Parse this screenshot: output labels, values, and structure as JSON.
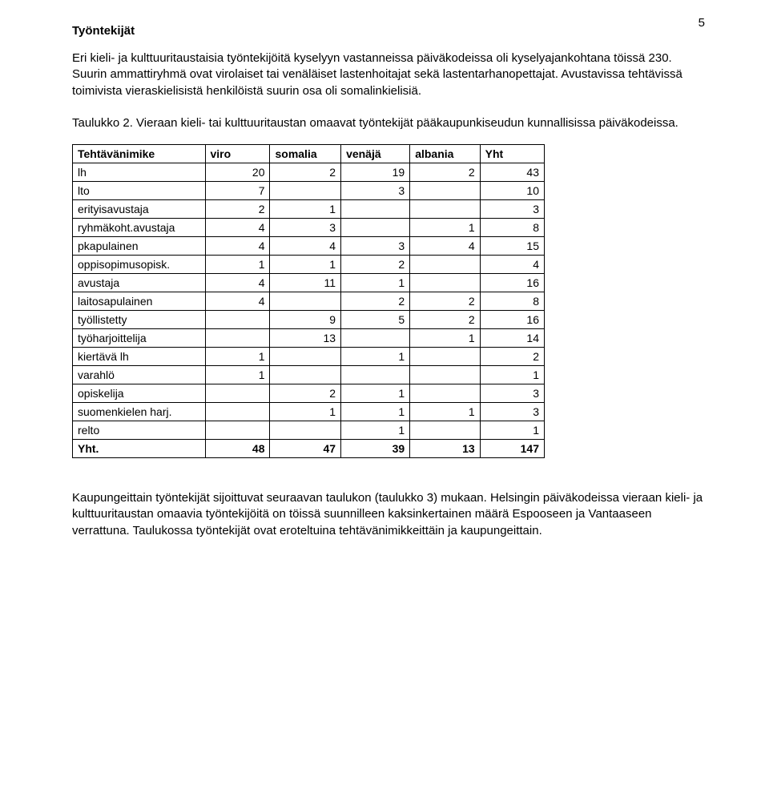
{
  "pageNumber": "5",
  "heading": "Työntekijät",
  "paragraph1": "Eri kieli- ja kulttuuritaustaisia työntekijöitä kyselyyn vastanneissa päiväkodeissa oli kyselyajankohtana töissä 230. Suurin ammattiryhmä ovat virolaiset tai venäläiset lastenhoitajat sekä lastentarhanopettajat. Avustavissa tehtävissä toimivista vieraskielisistä henkilöistä suurin osa oli somalinkielisiä.",
  "caption": "Taulukko 2. Vieraan kieli- tai kulttuuritaustan omaavat työntekijät pääkaupunkiseudun kunnallisissa päiväkodeissa.",
  "table": {
    "columns": [
      "Tehtävänimike",
      "viro",
      "somalia",
      "venäjä",
      "albania",
      "Yht"
    ],
    "rows": [
      [
        "lh",
        "20",
        "2",
        "19",
        "2",
        "43"
      ],
      [
        "lto",
        "7",
        "",
        "3",
        "",
        "10"
      ],
      [
        "erityisavustaja",
        "2",
        "1",
        "",
        "",
        "3"
      ],
      [
        "ryhmäkoht.avustaja",
        "4",
        "3",
        "",
        "1",
        "8"
      ],
      [
        "pkapulainen",
        "4",
        "4",
        "3",
        "4",
        "15"
      ],
      [
        "oppisopimusopisk.",
        "1",
        "1",
        "2",
        "",
        "4"
      ],
      [
        "avustaja",
        "4",
        "11",
        "1",
        "",
        "16"
      ],
      [
        "laitosapulainen",
        "4",
        "",
        "2",
        "2",
        "8"
      ],
      [
        "työllistetty",
        "",
        "9",
        "5",
        "2",
        "16"
      ],
      [
        "työharjoittelija",
        "",
        "13",
        "",
        "1",
        "14"
      ],
      [
        "kiertävä lh",
        "1",
        "",
        "1",
        "",
        "2"
      ],
      [
        "varahlö",
        "1",
        "",
        "",
        "",
        "1"
      ],
      [
        "opiskelija",
        "",
        "2",
        "1",
        "",
        "3"
      ],
      [
        "suomenkielen harj.",
        "",
        "1",
        "1",
        "1",
        "3"
      ],
      [
        "relto",
        "",
        "",
        "1",
        "",
        "1"
      ]
    ],
    "totalRow": [
      "Yht.",
      "48",
      "47",
      "39",
      "13",
      "147"
    ]
  },
  "paragraph2": "Kaupungeittain työntekijät sijoittuvat seuraavan taulukon (taulukko 3) mukaan. Helsingin päiväkodeissa vieraan kieli- ja kulttuuritaustan omaavia työntekijöitä on töissä suunnilleen kaksinkertainen määrä Espooseen ja Vantaaseen verrattuna. Taulukossa työntekijät ovat eroteltuina tehtävänimikkeittäin ja kaupungeittain."
}
